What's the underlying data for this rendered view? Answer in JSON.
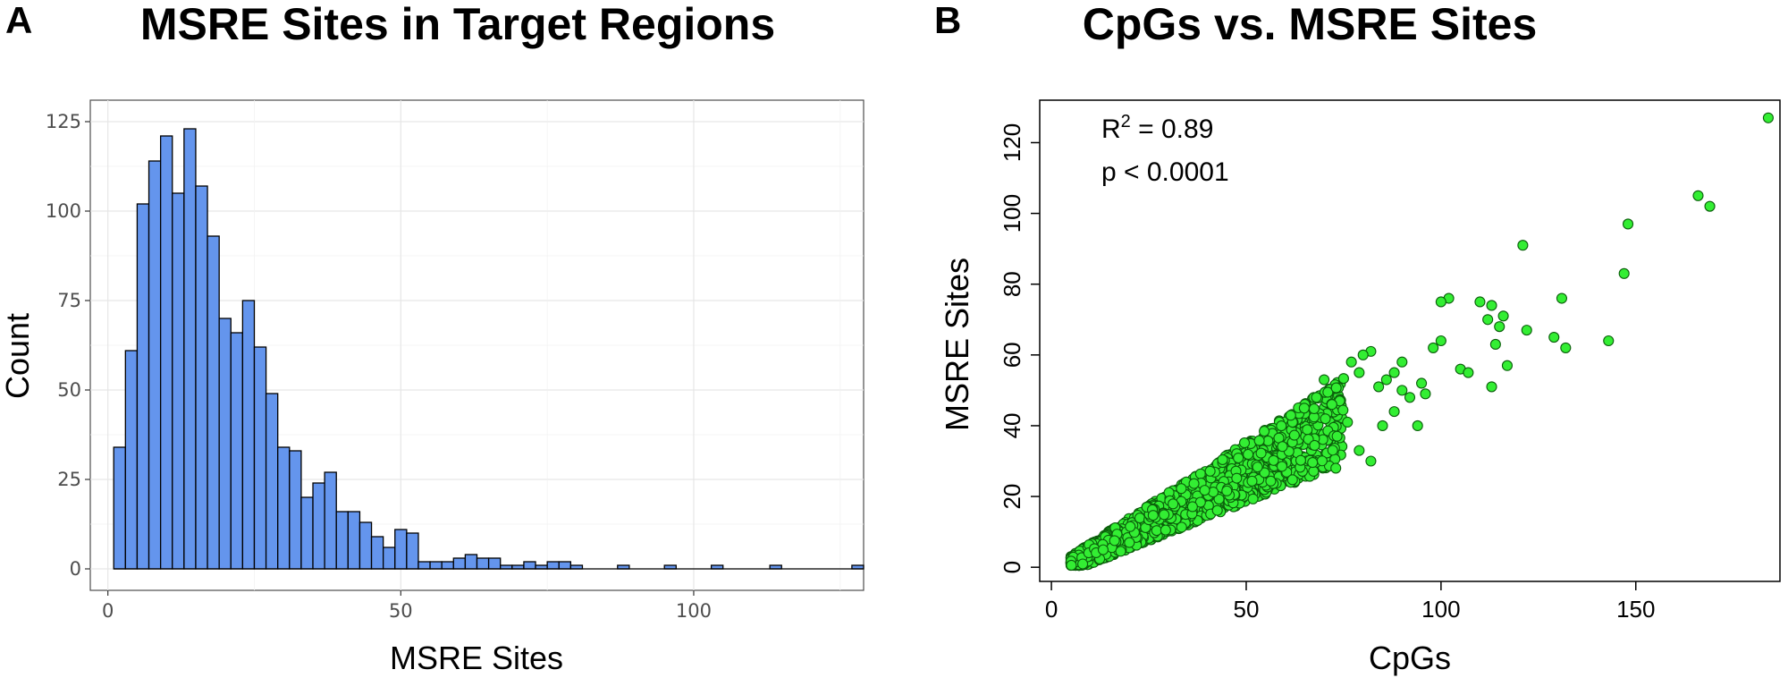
{
  "panel_a": {
    "letter": "A",
    "title": "MSRE Sites in Target Regions"
  },
  "panel_b": {
    "letter": "B",
    "title": "CpGs vs. MSRE Sites"
  },
  "chart_data": [
    {
      "type": "bar",
      "title": "MSRE Sites in Target Regions",
      "xlabel": "MSRE Sites",
      "ylabel": "Count",
      "xlim": [
        -3,
        129
      ],
      "ylim": [
        -6,
        131
      ],
      "xticks": [
        0,
        50,
        100
      ],
      "yticks": [
        0,
        25,
        50,
        75,
        100,
        125
      ],
      "grid": true,
      "bin_width": 2,
      "bin_start": 1,
      "bar_color": "#6495ED",
      "values": [
        34,
        61,
        102,
        114,
        121,
        105,
        123,
        107,
        93,
        70,
        66,
        75,
        62,
        49,
        34,
        33,
        20,
        24,
        27,
        16,
        16,
        13,
        9,
        6,
        11,
        10,
        2,
        2,
        2,
        3,
        4,
        3,
        3,
        1,
        1,
        2,
        1,
        2,
        2,
        1,
        0,
        0,
        0,
        1,
        0,
        0,
        0,
        1,
        0,
        0,
        0,
        1,
        0,
        0,
        0,
        0,
        1,
        0,
        0,
        0,
        0,
        0,
        0,
        1
      ]
    },
    {
      "type": "scatter",
      "title": "CpGs vs. MSRE Sites",
      "xlabel": "CpGs",
      "ylabel": "MSRE Sites",
      "xlim": [
        -3,
        187
      ],
      "ylim": [
        -4,
        132
      ],
      "xticks": [
        0,
        50,
        100,
        150
      ],
      "yticks": [
        0,
        20,
        40,
        60,
        80,
        100,
        120
      ],
      "grid": false,
      "point_color": "#33ee33",
      "annotations": {
        "r2_label": "R",
        "r2_sup": "2",
        "r2_value": " = 0.89",
        "p_text": "p < 0.0001"
      },
      "points": [
        [
          184,
          127
        ],
        [
          166,
          105
        ],
        [
          169,
          102
        ],
        [
          148,
          97
        ],
        [
          147,
          83
        ],
        [
          121,
          91
        ],
        [
          131,
          76
        ],
        [
          110,
          75
        ],
        [
          113,
          74
        ],
        [
          102,
          76
        ],
        [
          100,
          75
        ],
        [
          116,
          71
        ],
        [
          112,
          70
        ],
        [
          115,
          68
        ],
        [
          122,
          67
        ],
        [
          129,
          65
        ],
        [
          143,
          64
        ],
        [
          132,
          62
        ],
        [
          114,
          63
        ],
        [
          117,
          57
        ],
        [
          105,
          56
        ],
        [
          107,
          55
        ],
        [
          113,
          51
        ],
        [
          98,
          62
        ],
        [
          90,
          58
        ],
        [
          88,
          55
        ],
        [
          100,
          64
        ],
        [
          95,
          52
        ],
        [
          90,
          50
        ],
        [
          82,
          61
        ],
        [
          80,
          60
        ],
        [
          77,
          58
        ],
        [
          79,
          55
        ],
        [
          84,
          51
        ],
        [
          86,
          53
        ],
        [
          92,
          48
        ],
        [
          96,
          49
        ],
        [
          94,
          40
        ],
        [
          88,
          44
        ],
        [
          74,
          47
        ],
        [
          72,
          46
        ],
        [
          70,
          53
        ],
        [
          76,
          41
        ],
        [
          82,
          30
        ],
        [
          79,
          33
        ],
        [
          73,
          28
        ],
        [
          85,
          40
        ]
      ]
    }
  ]
}
